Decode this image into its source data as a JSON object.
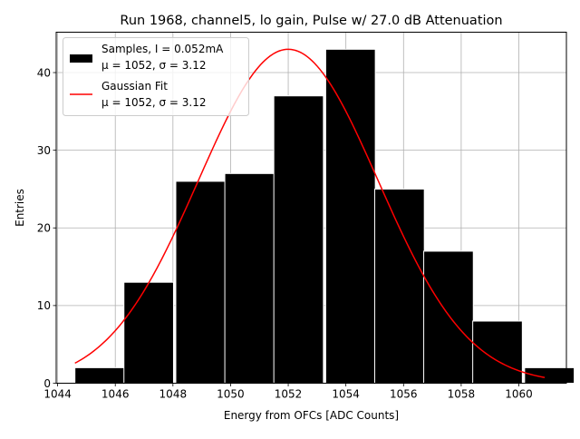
{
  "chart_data": {
    "type": "bar",
    "title": "Run 1968, channel5, lo gain, Pulse w/ 27.0 dB Attenuation",
    "xlabel": "Energy from OFCs [ADC Counts]",
    "ylabel": "Entries",
    "xlim": [
      1043.95,
      1061.65
    ],
    "ylim": [
      0,
      45.2
    ],
    "xticks": [
      1044,
      1046,
      1048,
      1050,
      1052,
      1054,
      1056,
      1058,
      1060
    ],
    "yticks": [
      0,
      10,
      20,
      30,
      40
    ],
    "grid": true,
    "legend_position": "top-left",
    "bin_edges": [
      1044.6,
      1046.3,
      1048.1,
      1049.8,
      1051.5,
      1053.3,
      1055.0,
      1056.7,
      1058.4,
      1060.2,
      1061.9
    ],
    "bin_width": 1.72,
    "counts": [
      2,
      13,
      26,
      27,
      37,
      43,
      25,
      17,
      8,
      2
    ],
    "histogram": {
      "name": "Samples, I = 0.052mA",
      "stats": "μ = 1052, σ = 3.12",
      "color": "#000000"
    },
    "fit": {
      "name": "Gaussian Fit",
      "stats": "μ = 1052, σ = 3.12",
      "color": "#ff0000",
      "mu": 1052,
      "sigma": 3.12,
      "amplitude": 43,
      "x_range": [
        1044.6,
        1060.9
      ]
    }
  }
}
